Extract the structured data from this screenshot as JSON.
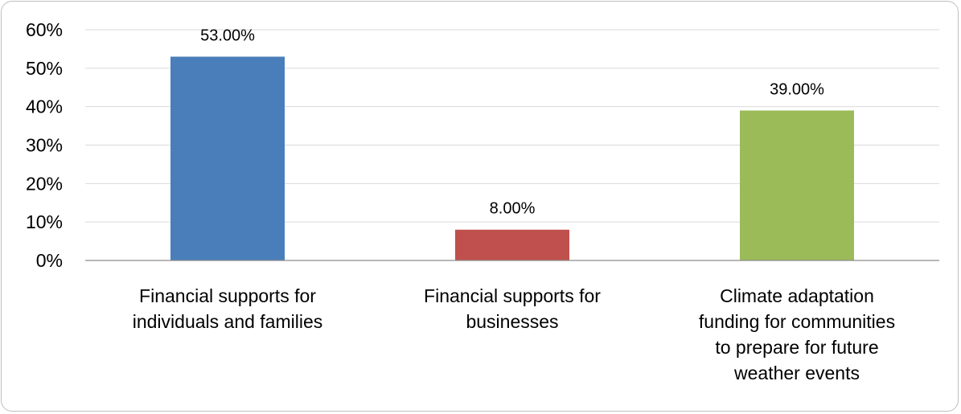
{
  "chart_data": {
    "type": "bar",
    "title": "",
    "xlabel": "",
    "ylabel": "",
    "ylim": [
      0,
      60
    ],
    "y_ticks": [
      "0%",
      "10%",
      "20%",
      "30%",
      "40%",
      "50%",
      "60%"
    ],
    "grid": true,
    "categories": [
      "Financial supports for individuals and families",
      "Financial supports for businesses",
      "Climate adaptation funding for communities to prepare for future weather events"
    ],
    "category_lines": [
      [
        "Financial supports for",
        "individuals and families"
      ],
      [
        "Financial supports for",
        "businesses"
      ],
      [
        "Climate adaptation",
        "funding for communities",
        "to prepare for future",
        "weather events"
      ]
    ],
    "values": [
      53,
      8,
      39
    ],
    "data_labels": [
      "53.00%",
      "8.00%",
      "39.00%"
    ],
    "colors": [
      "#4a7ebb",
      "#c0504d",
      "#9bbb59"
    ],
    "gridline_color": "#d9d9d9",
    "axis_color": "#8c8c8c"
  }
}
